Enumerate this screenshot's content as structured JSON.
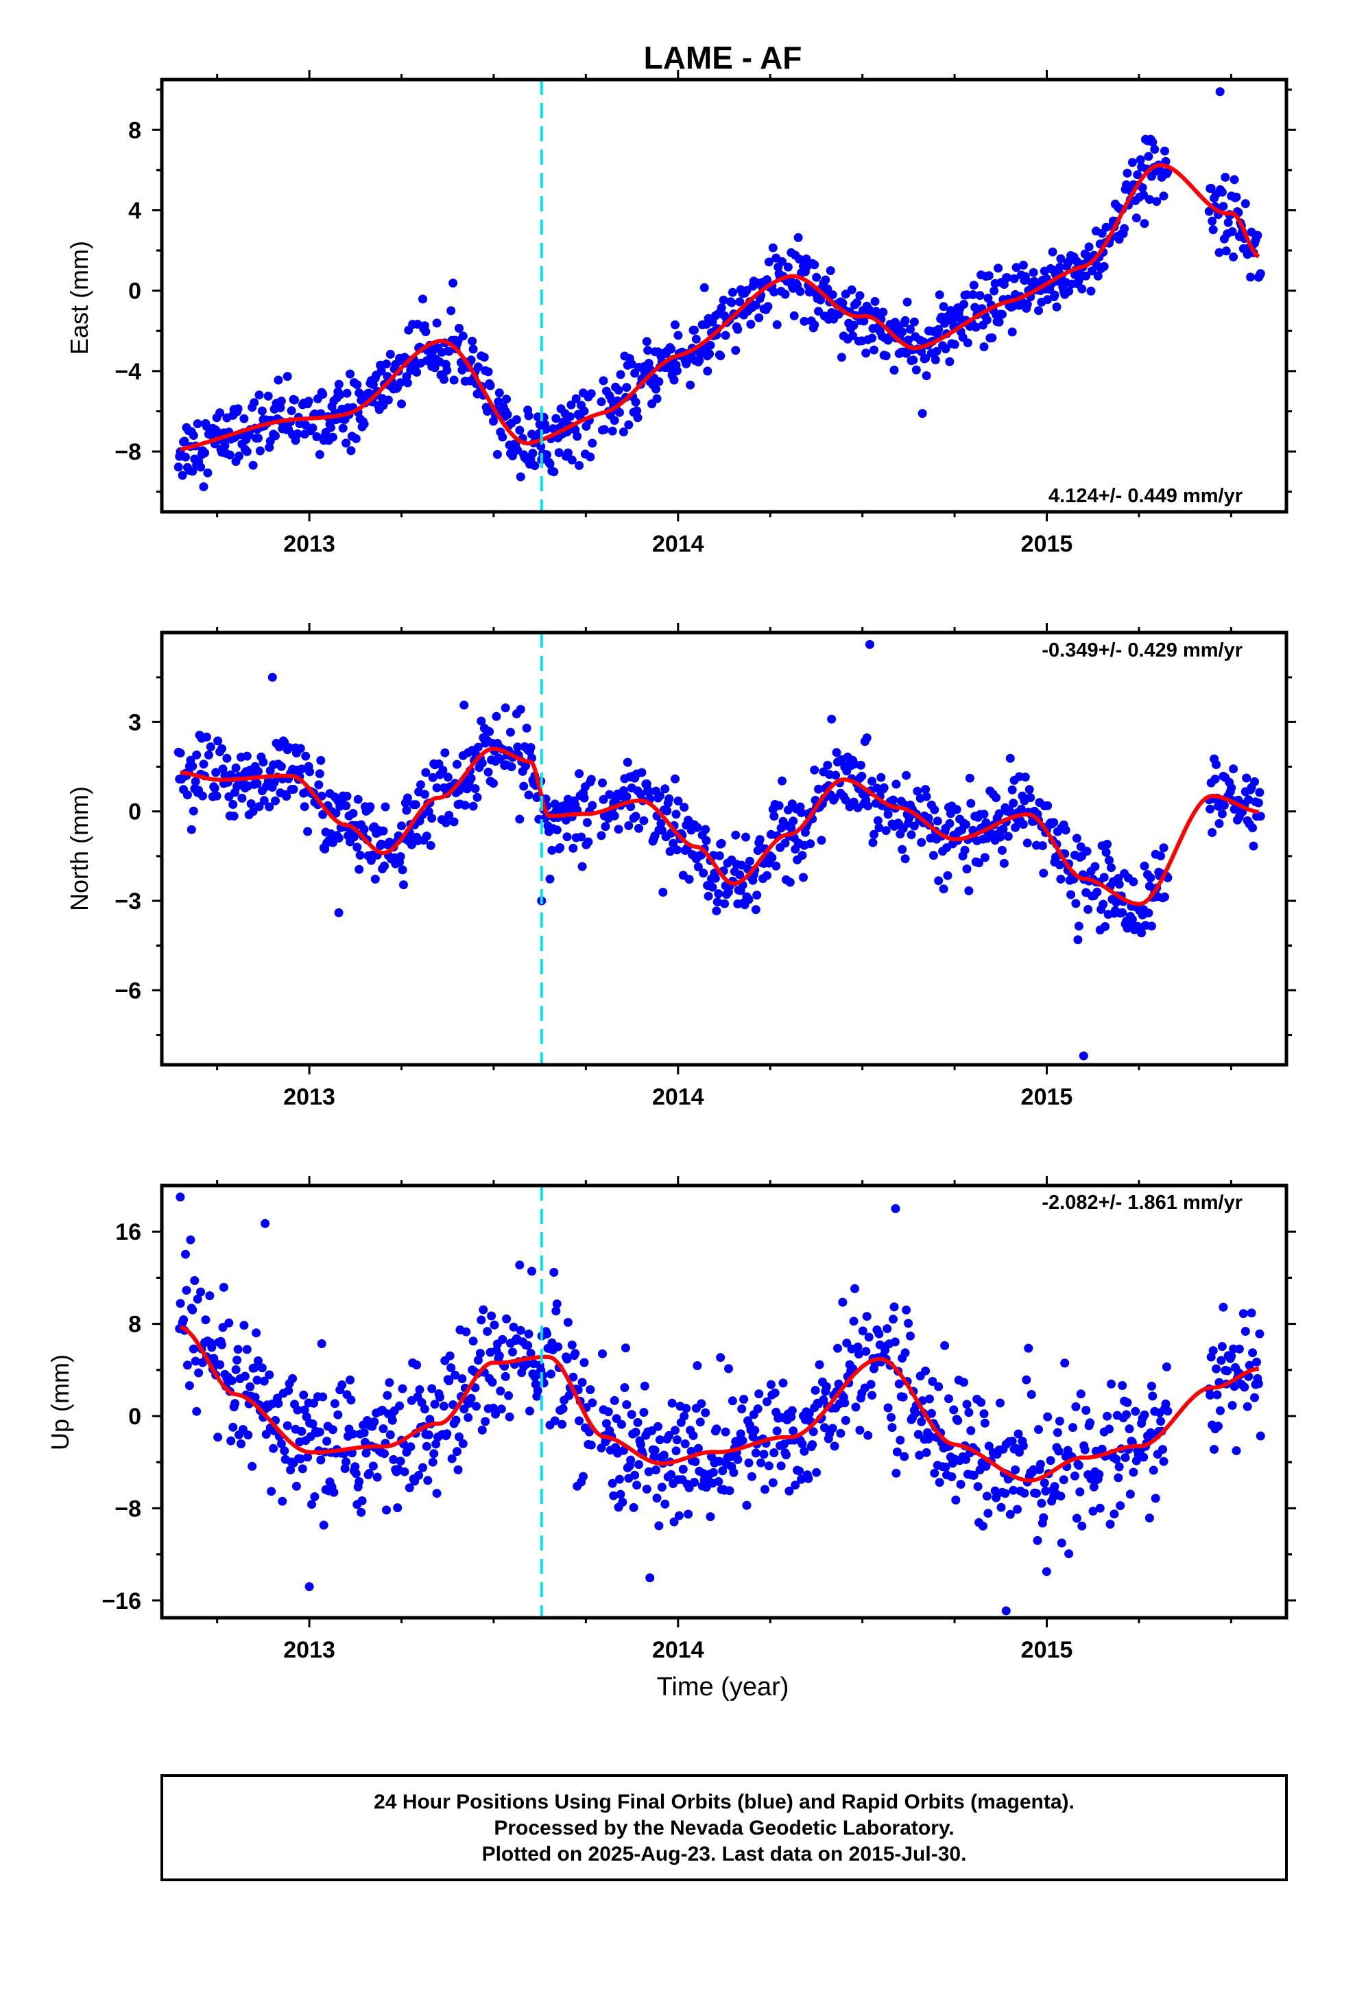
{
  "title": "LAME - AF",
  "colors": {
    "final_orbit_points": "#0000ff",
    "fit_curve": "#ff0000",
    "event_line": "#00e5ee",
    "frame": "#000000"
  },
  "chart_data": [
    {
      "type": "scatter",
      "panel": "east",
      "title": "LAME - AF",
      "ylabel": "East (mm)",
      "xlabel": "",
      "xlim": [
        2012.6,
        2015.65
      ],
      "ylim": [
        -11,
        10.5
      ],
      "x_ticks": [
        "2013",
        "2014",
        "2015"
      ],
      "y_ticks": [
        -8,
        -4,
        0,
        4,
        8
      ],
      "y_tick_labels": [
        "−8",
        "−4",
        "0",
        "4",
        "8"
      ],
      "rate_label": "4.124+/- 0.449 mm/yr",
      "rate_position": "bottom-right",
      "event_line_x": 2013.63,
      "trend": {
        "t0": 2012.65,
        "y0": -7.6,
        "rate": 4.124
      },
      "seasonal_x": [
        2012.65,
        2012.9,
        2013.1,
        2013.35,
        2013.6,
        2013.8,
        2014.0,
        2014.3,
        2014.5,
        2014.65,
        2014.9,
        2015.1,
        2015.3,
        2015.5,
        2015.58
      ],
      "seasonal_y": [
        -0.3,
        0.0,
        -0.4,
        2.2,
        -3.9,
        -3.2,
        -1.2,
        1.5,
        -1.3,
        -3.5,
        -2.2,
        -1.3,
        2.9,
        -0.3,
        -2.8
      ],
      "noise": 1.1,
      "outliers": [
        {
          "x": 2013.63,
          "y": -8.4
        },
        {
          "x": 2014.08,
          "y": -4.0
        },
        {
          "x": 2014.37,
          "y": -1.7
        },
        {
          "x": 2014.68,
          "y": -2.0
        },
        {
          "x": 2015.02,
          "y": -0.3
        },
        {
          "x": 2015.47,
          "y": 9.9
        }
      ]
    },
    {
      "type": "scatter",
      "panel": "north",
      "ylabel": "North (mm)",
      "xlabel": "",
      "xlim": [
        2012.6,
        2015.65
      ],
      "ylim": [
        -8.5,
        6
      ],
      "x_ticks": [
        "2013",
        "2014",
        "2015"
      ],
      "y_ticks": [
        -6,
        -3,
        0,
        3
      ],
      "y_tick_labels": [
        "−6",
        "−3",
        "0",
        "3"
      ],
      "rate_label": "-0.349+/- 0.429 mm/yr",
      "rate_position": "top-right",
      "event_line_x": 2013.63,
      "trend": {
        "t0": 2012.65,
        "y0": 0.5,
        "rate": -0.349
      },
      "seasonal_x": [
        2012.65,
        2012.75,
        2012.95,
        2013.1,
        2013.2,
        2013.35,
        2013.5,
        2013.6,
        2013.65,
        2013.75,
        2013.9,
        2014.05,
        2014.15,
        2014.3,
        2014.45,
        2014.6,
        2014.75,
        2014.95,
        2015.1,
        2015.25,
        2015.45,
        2015.58
      ],
      "seasonal_y": [
        0.8,
        0.6,
        0.8,
        -0.8,
        -1.7,
        0.2,
        1.9,
        1.5,
        -0.3,
        -0.2,
        0.3,
        -1.2,
        -2.4,
        -0.7,
        1.2,
        0.3,
        -0.7,
        0.2,
        -1.9,
        -2.7,
        1.0,
        0.5
      ],
      "noise": 0.9,
      "outliers": [
        {
          "x": 2013.63,
          "y": -3.0
        },
        {
          "x": 2014.52,
          "y": 5.6
        },
        {
          "x": 2015.1,
          "y": -8.2
        },
        {
          "x": 2012.9,
          "y": 4.5
        },
        {
          "x": 2013.08,
          "y": -3.4
        }
      ]
    },
    {
      "type": "scatter",
      "panel": "up",
      "ylabel": "Up (mm)",
      "xlabel": "Time (year)",
      "xlim": [
        2012.6,
        2015.65
      ],
      "ylim": [
        -17.5,
        20
      ],
      "x_ticks": [
        "2013",
        "2014",
        "2015"
      ],
      "y_ticks": [
        -16,
        -8,
        0,
        8,
        16
      ],
      "y_tick_labels": [
        "−16",
        "−8",
        "0",
        "8",
        "16"
      ],
      "rate_label": "-2.082+/- 1.861 mm/yr",
      "rate_position": "top-right",
      "event_line_x": 2013.63,
      "trend": {
        "t0": 2012.65,
        "y0": 2.0,
        "rate": -2.082
      },
      "seasonal_x": [
        2012.65,
        2012.8,
        2013.0,
        2013.2,
        2013.35,
        2013.5,
        2013.65,
        2013.8,
        2013.95,
        2014.1,
        2014.3,
        2014.55,
        2014.75,
        2014.95,
        2015.1,
        2015.25,
        2015.45,
        2015.58
      ],
      "seasonal_y": [
        5.7,
        0.2,
        -4.4,
        -3.5,
        -1.2,
        4.4,
        5.2,
        -1.4,
        -3.4,
        -2.1,
        -0.4,
        6.9,
        -0.1,
        -2.8,
        -0.5,
        0.8,
        6.3,
        8.2
      ],
      "noise": 4.0,
      "outliers": [
        {
          "x": 2012.65,
          "y": 19.0
        },
        {
          "x": 2012.88,
          "y": 16.7
        },
        {
          "x": 2013.0,
          "y": -14.8
        },
        {
          "x": 2014.59,
          "y": 18.0
        },
        {
          "x": 2014.89,
          "y": -16.9
        }
      ]
    }
  ],
  "footer": {
    "line1": "24 Hour Positions Using Final Orbits (blue) and Rapid Orbits (magenta).",
    "line2": "Processed by the Nevada Geodetic Laboratory.",
    "line3": "Plotted on 2025-Aug-23. Last data on 2015-Jul-30."
  }
}
